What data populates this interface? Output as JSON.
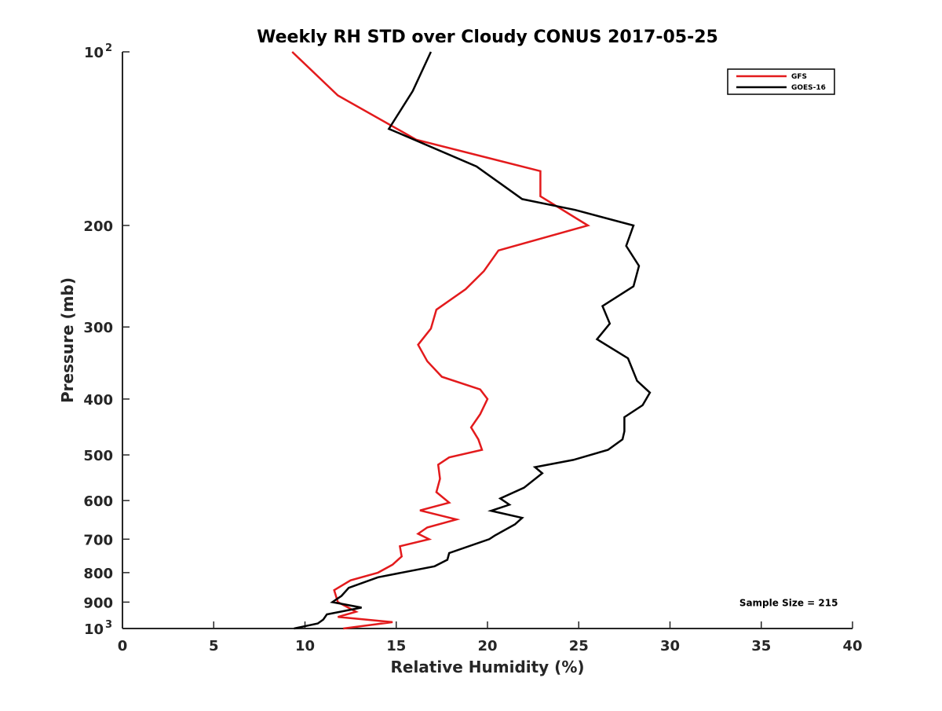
{
  "chart_data": {
    "type": "line",
    "title": "Weekly RH STD over Cloudy CONUS 2017-05-25",
    "xlabel": "Relative Humidity (%)",
    "ylabel": "Pressure (mb)",
    "xlim": [
      0,
      40
    ],
    "ylim": [
      100,
      1000
    ],
    "y_scale": "log",
    "y_reversed": true,
    "grid": false,
    "legend_position": "top-right",
    "x_ticks": [
      0,
      5,
      10,
      15,
      20,
      25,
      30,
      35,
      40
    ],
    "y_ticks": [
      {
        "value": 100,
        "label": "10",
        "sup": "2"
      },
      {
        "value": 200,
        "label": "200",
        "sup": ""
      },
      {
        "value": 300,
        "label": "300",
        "sup": ""
      },
      {
        "value": 400,
        "label": "400",
        "sup": ""
      },
      {
        "value": 500,
        "label": "500",
        "sup": ""
      },
      {
        "value": 600,
        "label": "600",
        "sup": ""
      },
      {
        "value": 700,
        "label": "700",
        "sup": ""
      },
      {
        "value": 800,
        "label": "800",
        "sup": ""
      },
      {
        "value": 900,
        "label": "900",
        "sup": ""
      },
      {
        "value": 1000,
        "label": "10",
        "sup": "3"
      }
    ],
    "series": [
      {
        "name": "GFS",
        "color": "#e31a1c",
        "points": [
          [
            9.3,
            100
          ],
          [
            11.8,
            119
          ],
          [
            16.1,
            142
          ],
          [
            22.9,
            161
          ],
          [
            22.9,
            178
          ],
          [
            25.5,
            200
          ],
          [
            20.6,
            221
          ],
          [
            19.8,
            240
          ],
          [
            18.8,
            258
          ],
          [
            17.2,
            280
          ],
          [
            16.9,
            302
          ],
          [
            16.2,
            322
          ],
          [
            16.7,
            344
          ],
          [
            17.5,
            366
          ],
          [
            19.6,
            385
          ],
          [
            20.0,
            400
          ],
          [
            19.6,
            425
          ],
          [
            19.1,
            448
          ],
          [
            19.5,
            470
          ],
          [
            19.7,
            490
          ],
          [
            17.9,
            505
          ],
          [
            17.3,
            520
          ],
          [
            17.4,
            550
          ],
          [
            17.2,
            580
          ],
          [
            17.9,
            605
          ],
          [
            16.3,
            624
          ],
          [
            18.3,
            647
          ],
          [
            16.7,
            668
          ],
          [
            16.2,
            685
          ],
          [
            16.8,
            700
          ],
          [
            15.2,
            720
          ],
          [
            15.3,
            750
          ],
          [
            14.8,
            775
          ],
          [
            14.0,
            800
          ],
          [
            12.5,
            825
          ],
          [
            11.6,
            858
          ],
          [
            11.8,
            900
          ],
          [
            12.8,
            935
          ],
          [
            11.8,
            955
          ],
          [
            14.8,
            975
          ],
          [
            12.1,
            1000
          ]
        ]
      },
      {
        "name": "GOES-16",
        "color": "#000000",
        "points": [
          [
            16.9,
            100
          ],
          [
            15.9,
            117
          ],
          [
            14.6,
            136
          ],
          [
            19.4,
            158
          ],
          [
            21.9,
            180
          ],
          [
            24.8,
            188
          ],
          [
            28.0,
            200
          ],
          [
            27.6,
            217
          ],
          [
            28.3,
            235
          ],
          [
            28.0,
            255
          ],
          [
            26.3,
            276
          ],
          [
            26.7,
            296
          ],
          [
            26.0,
            315
          ],
          [
            27.7,
            340
          ],
          [
            28.2,
            372
          ],
          [
            28.9,
            390
          ],
          [
            28.5,
            410
          ],
          [
            27.5,
            430
          ],
          [
            27.5,
            455
          ],
          [
            27.4,
            470
          ],
          [
            26.6,
            490
          ],
          [
            24.7,
            510
          ],
          [
            22.6,
            525
          ],
          [
            23.0,
            538
          ],
          [
            22.0,
            570
          ],
          [
            20.7,
            595
          ],
          [
            21.2,
            610
          ],
          [
            20.2,
            625
          ],
          [
            21.9,
            643
          ],
          [
            21.5,
            660
          ],
          [
            20.4,
            690
          ],
          [
            20.1,
            700
          ],
          [
            17.9,
            740
          ],
          [
            17.8,
            760
          ],
          [
            17.1,
            780
          ],
          [
            14.0,
            815
          ],
          [
            12.4,
            850
          ],
          [
            12.0,
            878
          ],
          [
            11.5,
            900
          ],
          [
            13.1,
            920
          ],
          [
            11.2,
            945
          ],
          [
            11.0,
            965
          ],
          [
            10.7,
            980
          ],
          [
            9.4,
            1000
          ]
        ]
      }
    ],
    "annotations": [
      {
        "text": "Sample Size = 215",
        "x": 36.5,
        "y": 900
      }
    ]
  }
}
